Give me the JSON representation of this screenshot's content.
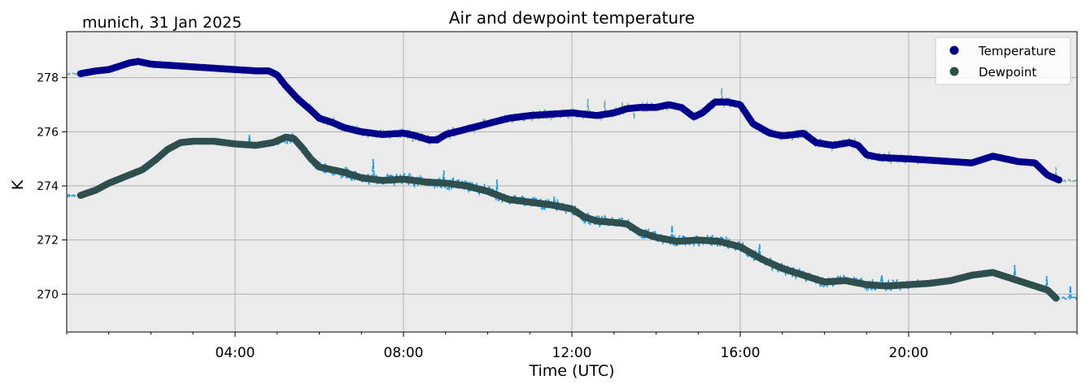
{
  "chart_data": {
    "type": "line",
    "title": "Air and dewpoint temperature",
    "subtitle": "munich, 31 Jan 2025",
    "xlabel": "Time (UTC)",
    "ylabel": "K",
    "xlim": [
      0,
      24
    ],
    "ylim": [
      268.6,
      279.7
    ],
    "x_tick_values": [
      4,
      8,
      12,
      16,
      20
    ],
    "x_tick_labels": [
      "04:00",
      "08:00",
      "12:00",
      "16:00",
      "20:00"
    ],
    "y_ticks": [
      270,
      272,
      274,
      276,
      278
    ],
    "grid": true,
    "legend_position": "top-right",
    "colors": {
      "background": "#ebebeb",
      "grid": "#b0b0b0",
      "temperature_raw": "#7aabac",
      "dewpoint_raw": "#1e9be6",
      "temperature": "#00008b",
      "dewpoint": "#2f4f4f"
    },
    "series": [
      {
        "name": "Temperature",
        "key": "temperature",
        "style": "markers",
        "x": [
          0.33,
          0.7,
          1.0,
          1.3,
          1.5,
          1.7,
          2.0,
          2.5,
          3.0,
          3.5,
          4.0,
          4.5,
          4.8,
          5.0,
          5.2,
          5.5,
          5.8,
          6.0,
          6.3,
          6.6,
          7.0,
          7.5,
          8.0,
          8.3,
          8.6,
          8.8,
          9.0,
          9.5,
          10.0,
          10.5,
          11.0,
          11.5,
          12.0,
          12.3,
          12.6,
          13.0,
          13.3,
          13.6,
          14.0,
          14.3,
          14.6,
          14.9,
          15.1,
          15.4,
          15.7,
          16.0,
          16.3,
          16.7,
          17.0,
          17.3,
          17.5,
          17.8,
          18.2,
          18.6,
          18.8,
          19.0,
          19.3,
          20.0,
          21.0,
          21.5,
          21.8,
          22.0,
          22.3,
          22.6,
          23.0,
          23.3,
          23.6
        ],
        "y": [
          278.15,
          278.25,
          278.3,
          278.45,
          278.55,
          278.6,
          278.5,
          278.45,
          278.4,
          278.35,
          278.3,
          278.25,
          278.25,
          278.1,
          277.7,
          277.2,
          276.8,
          276.5,
          276.35,
          276.15,
          276.0,
          275.9,
          275.95,
          275.85,
          275.7,
          275.7,
          275.9,
          276.1,
          276.3,
          276.5,
          276.6,
          276.65,
          276.7,
          276.65,
          276.6,
          276.7,
          276.85,
          276.9,
          276.9,
          277.0,
          276.9,
          276.55,
          276.7,
          277.1,
          277.1,
          277.0,
          276.3,
          275.95,
          275.85,
          275.9,
          275.95,
          275.6,
          275.5,
          275.6,
          275.5,
          275.15,
          275.05,
          275.0,
          274.9,
          274.85,
          275.0,
          275.1,
          275.0,
          274.9,
          274.85,
          274.4,
          274.2
        ]
      },
      {
        "name": "Dewpoint",
        "key": "dewpoint",
        "style": "markers",
        "x": [
          0.33,
          0.7,
          1.0,
          1.4,
          1.8,
          2.1,
          2.4,
          2.7,
          3.0,
          3.5,
          4.0,
          4.5,
          4.9,
          5.2,
          5.4,
          5.6,
          5.8,
          6.0,
          6.3,
          6.6,
          7.0,
          7.5,
          8.0,
          8.5,
          9.0,
          9.5,
          10.0,
          10.5,
          11.0,
          11.5,
          12.0,
          12.3,
          12.6,
          13.0,
          13.3,
          13.6,
          14.0,
          14.5,
          15.0,
          15.5,
          16.0,
          16.5,
          17.0,
          17.5,
          18.0,
          18.5,
          19.0,
          19.5,
          20.0,
          20.5,
          21.0,
          21.5,
          22.0,
          22.5,
          23.0,
          23.3,
          23.5
        ],
        "y": [
          273.65,
          273.85,
          274.1,
          274.35,
          274.6,
          274.95,
          275.35,
          275.6,
          275.65,
          275.65,
          275.55,
          275.5,
          275.6,
          275.8,
          275.75,
          275.4,
          275.0,
          274.7,
          274.6,
          274.5,
          274.3,
          274.2,
          274.25,
          274.15,
          274.1,
          274.0,
          273.8,
          273.5,
          273.4,
          273.3,
          273.15,
          272.85,
          272.7,
          272.65,
          272.6,
          272.3,
          272.1,
          271.95,
          272.0,
          271.95,
          271.75,
          271.3,
          270.95,
          270.7,
          270.45,
          270.5,
          270.35,
          270.3,
          270.35,
          270.4,
          270.5,
          270.7,
          270.8,
          270.55,
          270.3,
          270.15,
          269.85
        ]
      }
    ]
  }
}
